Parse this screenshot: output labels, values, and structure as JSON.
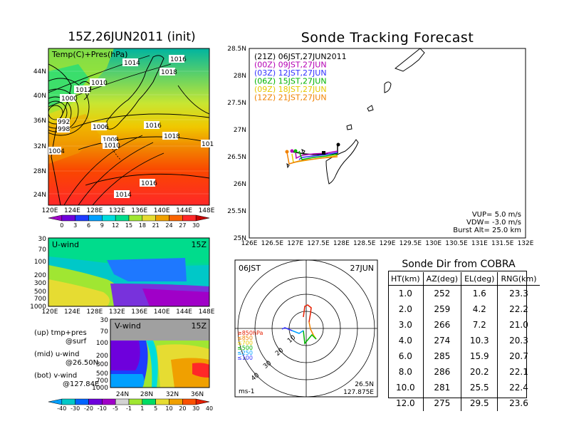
{
  "left_title": "15Z,26JUN2011 (init)",
  "right_title": "Sonde Tracking Forecast",
  "colors": {
    "colorbar_top": [
      "#a000c8",
      "#6e00dc",
      "#1e3cff",
      "#00a0ff",
      "#00dcdc",
      "#00dc8c",
      "#a0e632",
      "#e6dc32",
      "#f0a000",
      "#fa6400",
      "#ff2828",
      "#c80000"
    ],
    "colorbar_bottom": [
      "#00a0ff",
      "#00c8c8",
      "#0064ff",
      "#6e00dc",
      "#a000c8",
      "#d2d2d2",
      "#a0e632",
      "#00dc64",
      "#e6dc32",
      "#f0a000",
      "#fa5000",
      "#e61e00"
    ],
    "track_00z": "#b400b4",
    "track_03z": "#3232ff",
    "track_06z": "#00b400",
    "track_09z": "#e6c800",
    "track_12z": "#f08200"
  },
  "map_top": {
    "label": "Temp(C)+Pres(hPa)",
    "lat_labels": [
      "44N",
      "40N",
      "36N",
      "32N",
      "28N",
      "24N"
    ],
    "lon_labels": [
      "120E",
      "124E",
      "128E",
      "132E",
      "136E",
      "140E",
      "144E",
      "148E"
    ],
    "isobar_labels": [
      "1016",
      "1014",
      "1018",
      "1012",
      "1010",
      "1000",
      "992",
      "998",
      "1006",
      "1008",
      "1010",
      "1016",
      "1018",
      "1004",
      "1016",
      "1014",
      "1014",
      "101"
    ],
    "colorbar_labels": [
      "0",
      "3",
      "6",
      "9",
      "12",
      "15",
      "18",
      "21",
      "24",
      "27",
      "30"
    ]
  },
  "section_u": {
    "label": "U-wind",
    "time": "15Z",
    "p_labels": [
      "30",
      "70",
      "100",
      "200",
      "300",
      "500",
      "700",
      "1000"
    ],
    "lon_labels": [
      "120E",
      "124E",
      "128E",
      "132E",
      "136E",
      "140E",
      "144E",
      "148E"
    ]
  },
  "section_v": {
    "label": "V-wind",
    "time": "15Z",
    "p_labels": [
      "30",
      "70",
      "100",
      "200",
      "300",
      "500",
      "700",
      "1000"
    ],
    "lat_labels": [
      "24N",
      "28N",
      "32N",
      "36N"
    ],
    "colorbar_labels": [
      "-40",
      "-30",
      "-20",
      "-10",
      "-5",
      "-1",
      "1",
      "5",
      "10",
      "20",
      "30",
      "40"
    ]
  },
  "notes": [
    {
      "line1": "(up) tmp+pres",
      "line2": "@surf"
    },
    {
      "line1": "(mid) u-wind",
      "line2": "@26.50N"
    },
    {
      "line1": "(bot) v-wind",
      "line2": "@127.84E"
    }
  ],
  "track_map": {
    "lat_labels": [
      "28.5N",
      "28N",
      "27.5N",
      "27N",
      "26.5N",
      "26N",
      "25.5N",
      "25N"
    ],
    "lon_labels": [
      "126E",
      "126.5E",
      "127E",
      "127.5E",
      "128E",
      "128.5E",
      "129E",
      "129.5E",
      "130E",
      "130.5E",
      "131E",
      "131.5E",
      "132E"
    ],
    "legend": [
      {
        "text": "(21Z)  06JST,27JUN2011",
        "color": "#000000"
      },
      {
        "text": "(00Z)  09JST,27JUN",
        "color": "#b400b4"
      },
      {
        "text": "(03Z)  12JST,27JUN",
        "color": "#3232ff"
      },
      {
        "text": "(06Z)  15JST,27JUN",
        "color": "#00b400"
      },
      {
        "text": "(09Z)  18JST,27JUN",
        "color": "#e6c800"
      },
      {
        "text": "(12Z)  21JST,27JUN",
        "color": "#f08200"
      }
    ],
    "params": [
      "VUP=  5.0  m/s",
      "VDW= -3.0  m/s",
      "Burst Alt=  25.0  km"
    ]
  },
  "polar": {
    "time": "06JST",
    "date": "27JUN",
    "ring_labels": [
      "10",
      "20",
      "30",
      "40"
    ],
    "levels": [
      {
        "text": "≥850hPa",
        "color": "#e61e00"
      },
      {
        "text": "≤850",
        "color": "#f08200"
      },
      {
        "text": "≤700",
        "color": "#e6c800"
      },
      {
        "text": "≤500",
        "color": "#00b400"
      },
      {
        "text": "≤250",
        "color": "#00a0ff"
      },
      {
        "text": "≤100",
        "color": "#3232ff"
      }
    ],
    "unit": "ms-1",
    "lat": "26.5N",
    "lon": "127.875E"
  },
  "chart_data": {
    "type": "table",
    "title": "Sonde Dir from COBRA",
    "columns": [
      "HT(km)",
      "AZ(deg)",
      "EL(deg)",
      "RNG(km)"
    ],
    "rows": [
      [
        "1.0",
        "252",
        "1.6",
        "23.3"
      ],
      [
        "2.0",
        "259",
        "4.2",
        "22.2"
      ],
      [
        "3.0",
        "266",
        "7.2",
        "21.0"
      ],
      [
        "4.0",
        "274",
        "10.3",
        "20.3"
      ],
      [
        "6.0",
        "285",
        "15.9",
        "20.7"
      ],
      [
        "8.0",
        "286",
        "20.2",
        "22.1"
      ],
      [
        "10.0",
        "281",
        "25.5",
        "22.4"
      ],
      [
        "12.0",
        "275",
        "29.5",
        "23.6"
      ]
    ]
  }
}
